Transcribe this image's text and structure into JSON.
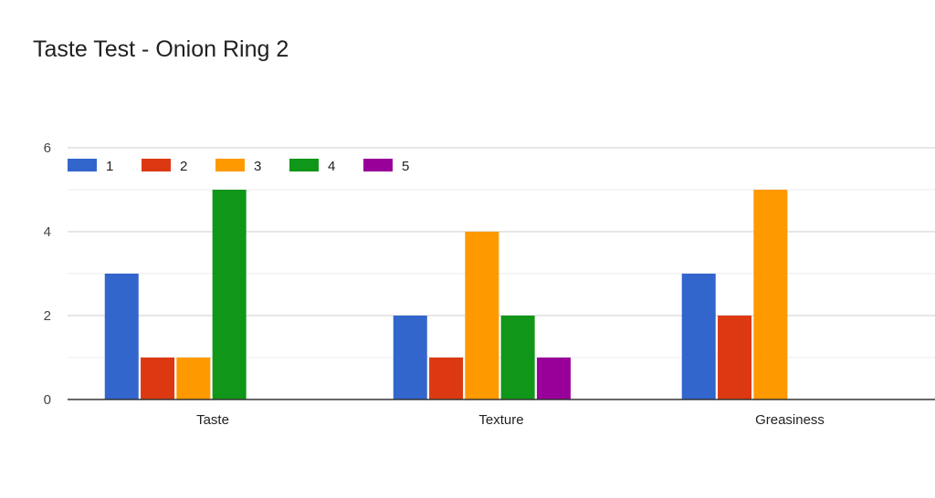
{
  "chart_data": {
    "type": "bar",
    "title": "Taste Test - Onion Ring 2",
    "xlabel": "",
    "ylabel": "",
    "categories": [
      "Taste",
      "Texture",
      "Greasiness"
    ],
    "series": [
      {
        "name": "1",
        "color": "#3366cc",
        "values": [
          3,
          2,
          3
        ]
      },
      {
        "name": "2",
        "color": "#dc3912",
        "values": [
          1,
          1,
          2
        ]
      },
      {
        "name": "3",
        "color": "#ff9900",
        "values": [
          1,
          4,
          5
        ]
      },
      {
        "name": "4",
        "color": "#109618",
        "values": [
          5,
          2,
          0
        ]
      },
      {
        "name": "5",
        "color": "#990099",
        "values": [
          0,
          1,
          0
        ]
      }
    ],
    "ylim": [
      0,
      6
    ],
    "yticks": [
      0,
      2,
      4,
      6
    ],
    "grid": true,
    "legend_position": "top-left"
  }
}
